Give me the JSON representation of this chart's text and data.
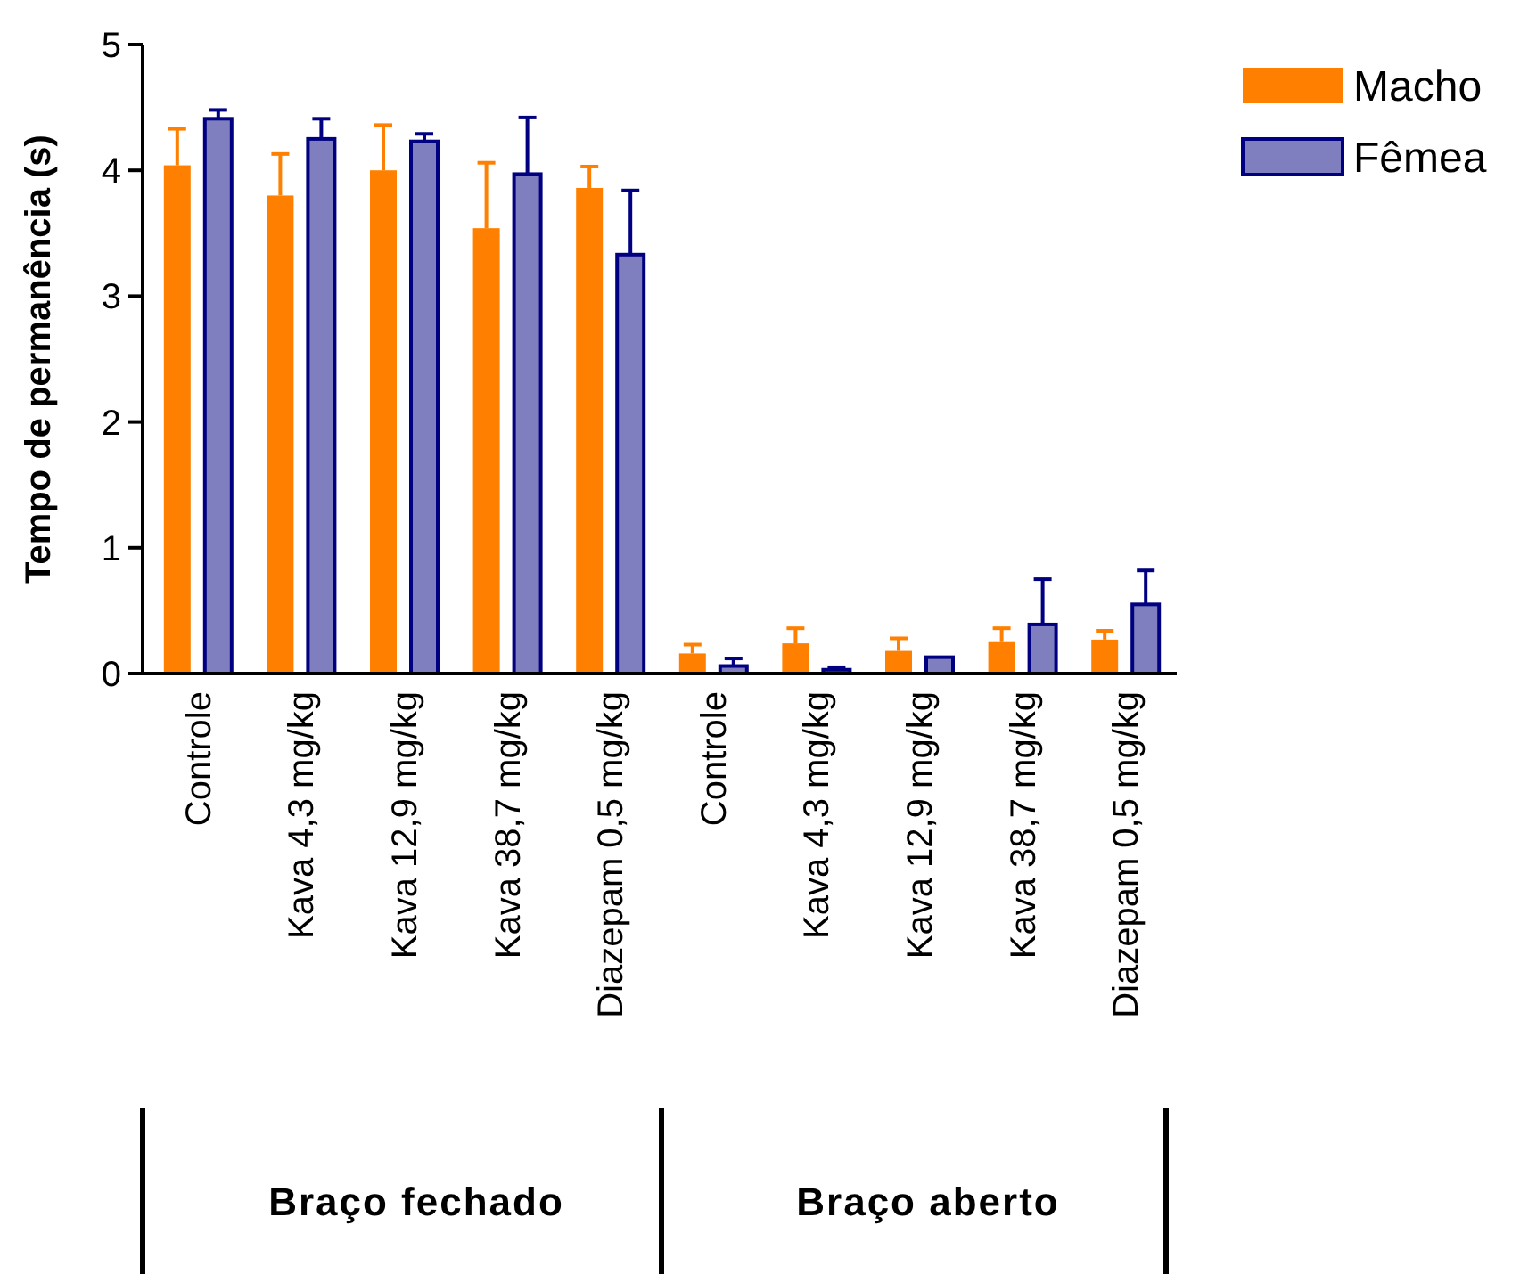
{
  "chart_data": {
    "type": "bar",
    "ylabel": "Tempo de permanência (s)",
    "categories": [
      "Controle",
      "Kava 4,3 mg/kg",
      "Kava 12,9 mg/kg",
      "Kava 38,7 mg/kg",
      "Diazepam 0,5 mg/kg",
      "Controle",
      "Kava 4,3 mg/kg",
      "Kava 12,9 mg/kg",
      "Kava 38,7 mg/kg",
      "Diazepam 0,5 mg/kg"
    ],
    "series": [
      {
        "name": "Macho",
        "color": "#ff8000",
        "values": [
          4.04,
          3.8,
          4.0,
          3.54,
          3.86,
          0.16,
          0.24,
          0.18,
          0.25,
          0.27
        ],
        "errors": [
          [
            4.04,
            4.33
          ],
          [
            3.8,
            4.13
          ],
          [
            4.0,
            4.36
          ],
          [
            3.54,
            4.06
          ],
          [
            3.86,
            4.03
          ],
          [
            0.16,
            0.23
          ],
          [
            0.24,
            0.36
          ],
          [
            0.18,
            0.28
          ],
          [
            0.25,
            0.36
          ],
          [
            0.27,
            0.34
          ]
        ]
      },
      {
        "name": "Fêmea",
        "color": "#7f7fbf",
        "values": [
          4.41,
          4.25,
          4.23,
          3.97,
          3.33,
          0.06,
          0.03,
          0.13,
          0.39,
          0.55
        ],
        "errors": [
          [
            4.41,
            4.48
          ],
          [
            4.25,
            4.41
          ],
          [
            4.23,
            4.29
          ],
          [
            3.97,
            4.42
          ],
          [
            3.33,
            3.84
          ],
          [
            0.06,
            0.12
          ],
          [
            0.03,
            0.05
          ],
          null,
          [
            0.39,
            0.75
          ],
          [
            0.55,
            0.82
          ]
        ]
      }
    ],
    "ylim": [
      0,
      5
    ],
    "yticks": [
      0,
      1,
      2,
      3,
      4,
      5
    ],
    "grid": false,
    "legend": "top right",
    "annotations": [
      "Braço fechado",
      "Braço aberto"
    ]
  }
}
